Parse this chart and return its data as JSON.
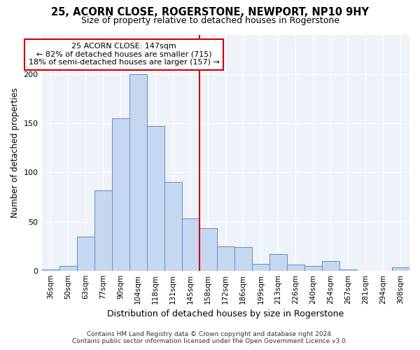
{
  "title": "25, ACORN CLOSE, ROGERSTONE, NEWPORT, NP10 9HY",
  "subtitle": "Size of property relative to detached houses in Rogerstone",
  "xlabel": "Distribution of detached houses by size in Rogerstone",
  "ylabel": "Number of detached properties",
  "categories": [
    "36sqm",
    "50sqm",
    "63sqm",
    "77sqm",
    "90sqm",
    "104sqm",
    "118sqm",
    "131sqm",
    "145sqm",
    "158sqm",
    "172sqm",
    "186sqm",
    "199sqm",
    "213sqm",
    "226sqm",
    "240sqm",
    "254sqm",
    "267sqm",
    "281sqm",
    "294sqm",
    "308sqm"
  ],
  "values": [
    1,
    5,
    35,
    82,
    155,
    200,
    147,
    90,
    53,
    43,
    25,
    24,
    7,
    17,
    6,
    5,
    10,
    1,
    0,
    0,
    3
  ],
  "bar_color": "#c5d8f0",
  "bar_edge_color": "#5b8ec4",
  "ref_line_color": "#cc0000",
  "annotation_box_edge_color": "#cc0000",
  "annotation_line1": "25 ACORN CLOSE: 147sqm",
  "annotation_line2": "← 82% of detached houses are smaller (715)",
  "annotation_line3": "18% of semi-detached houses are larger (157) →",
  "footer1": "Contains HM Land Registry data © Crown copyright and database right 2024.",
  "footer2": "Contains public sector information licensed under the Open Government Licence v3.0.",
  "ylim": [
    0,
    240
  ],
  "background_color": "#eef2f9"
}
